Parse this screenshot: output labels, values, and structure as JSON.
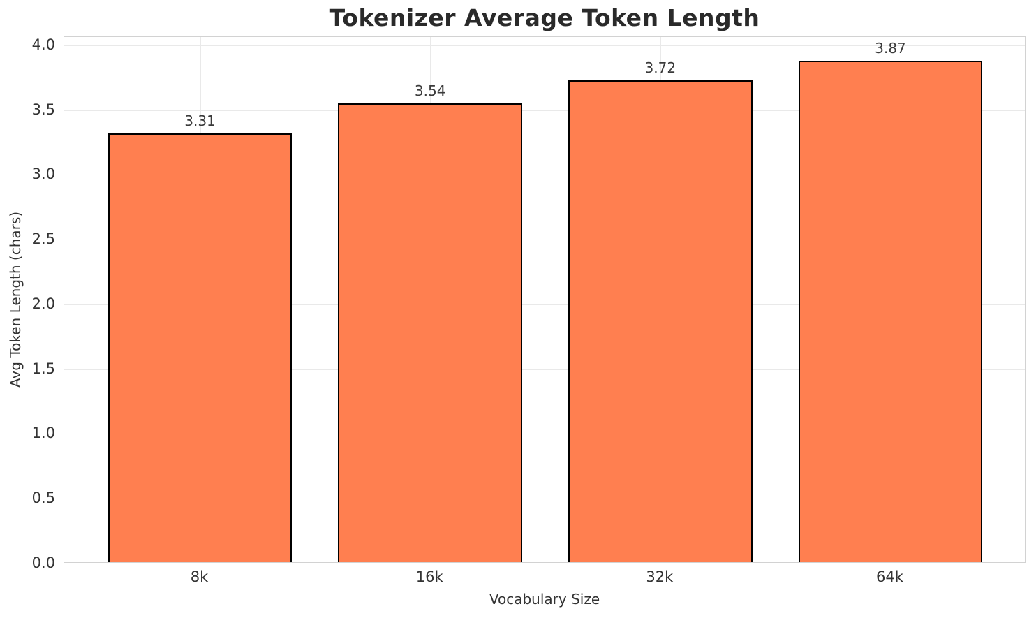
{
  "title": "Tokenizer Average Token Length",
  "chart_data": {
    "type": "bar",
    "title": "Tokenizer Average Token Length",
    "xlabel": "Vocabulary Size",
    "ylabel": "Avg Token Length (chars)",
    "categories": [
      "8k",
      "16k",
      "32k",
      "64k"
    ],
    "values": [
      3.31,
      3.54,
      3.72,
      3.87
    ],
    "value_labels": [
      "3.31",
      "3.54",
      "3.72",
      "3.87"
    ],
    "ylim": [
      0,
      4.0635
    ],
    "yticks": [
      0.0,
      0.5,
      1.0,
      1.5,
      2.0,
      2.5,
      3.0,
      3.5,
      4.0
    ],
    "ytick_labels": [
      "0.0",
      "0.5",
      "1.0",
      "1.5",
      "2.0",
      "2.5",
      "3.0",
      "3.5",
      "4.0"
    ],
    "grid": true,
    "legend": false,
    "bar_width_fraction": 0.8,
    "colors": {
      "bar_fill": "#FF7F50",
      "bar_edge": "#000000",
      "grid": "#e9e9e9",
      "spine": "#d2d2d2",
      "title_text": "#2a2a2a",
      "tick_text": "#333333"
    }
  }
}
